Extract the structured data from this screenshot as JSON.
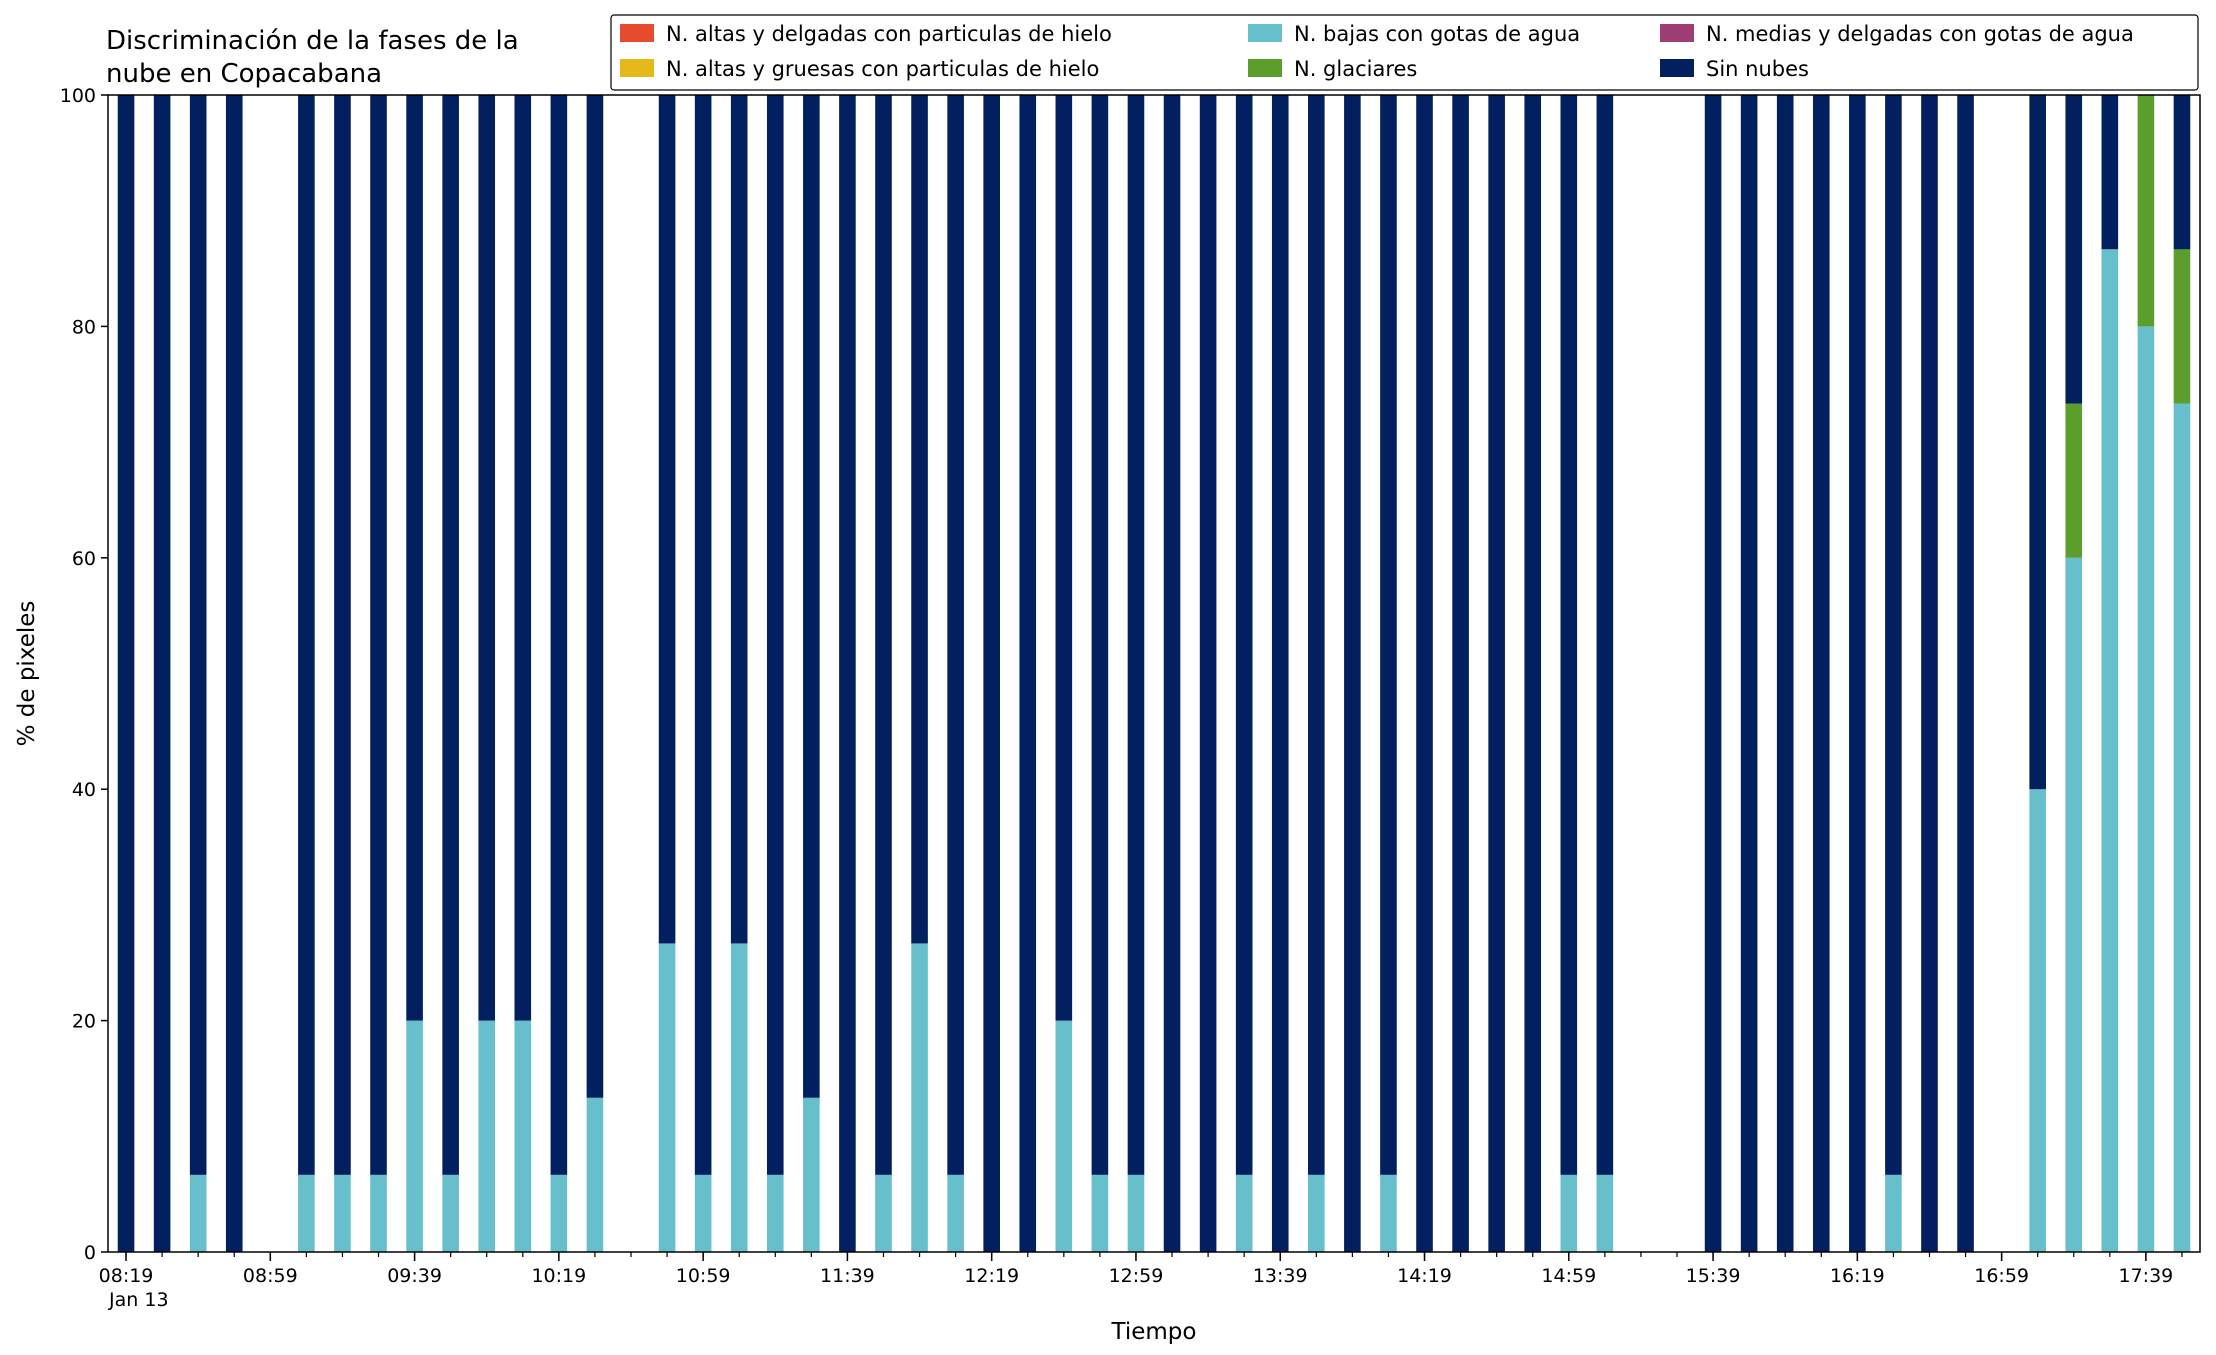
{
  "chart_data": {
    "type": "bar",
    "stacked": true,
    "title": "Discriminación de la fases de la\nnube en Copacabana",
    "xlabel": "Tiempo",
    "ylabel": "% de pixeles",
    "ylim": [
      0,
      100
    ],
    "yticks": [
      0,
      20,
      40,
      60,
      80,
      100
    ],
    "x_date_label": "Jan 13",
    "xlim": [
      "08:14",
      "17:54"
    ],
    "x_major_ticks": [
      "08:19",
      "08:59",
      "09:39",
      "10:19",
      "10:59",
      "11:39",
      "12:19",
      "12:59",
      "13:39",
      "14:19",
      "14:59",
      "15:39",
      "16:19",
      "16:59",
      "17:39"
    ],
    "x_minor_interval_minutes": 10,
    "bar_width_minutes": 4.6,
    "grid": false,
    "legend_position": "top-right",
    "categories": [
      "08:19",
      "08:29",
      "08:39",
      "08:49",
      "09:09",
      "09:19",
      "09:29",
      "09:39",
      "09:49",
      "09:59",
      "10:09",
      "10:19",
      "10:29",
      "10:49",
      "10:59",
      "11:09",
      "11:19",
      "11:29",
      "11:39",
      "11:49",
      "11:59",
      "12:09",
      "12:19",
      "12:29",
      "12:39",
      "12:49",
      "12:59",
      "13:09",
      "13:19",
      "13:29",
      "13:39",
      "13:49",
      "13:59",
      "14:09",
      "14:19",
      "14:29",
      "14:39",
      "14:49",
      "14:59",
      "15:09",
      "15:39",
      "15:49",
      "15:59",
      "16:09",
      "16:19",
      "16:29",
      "16:39",
      "16:49",
      "17:09",
      "17:19",
      "17:29",
      "17:39",
      "17:49"
    ],
    "series": [
      {
        "name": "N. altas y delgadas con particulas de hielo",
        "color": "#e64b2e",
        "values": [
          0,
          0,
          0,
          0,
          0,
          0,
          0,
          0,
          0,
          0,
          0,
          0,
          0,
          0,
          0,
          0,
          0,
          0,
          0,
          0,
          0,
          0,
          0,
          0,
          0,
          0,
          0,
          0,
          0,
          0,
          0,
          0,
          0,
          0,
          0,
          0,
          0,
          0,
          0,
          0,
          0,
          0,
          0,
          0,
          0,
          0,
          0,
          0,
          0,
          0,
          0,
          0,
          0
        ]
      },
      {
        "name": "N. altas y gruesas con particulas de hielo",
        "color": "#e6b91a",
        "values": [
          0,
          0,
          0,
          0,
          0,
          0,
          0,
          0,
          0,
          0,
          0,
          0,
          0,
          0,
          0,
          0,
          0,
          0,
          0,
          0,
          0,
          0,
          0,
          0,
          0,
          0,
          0,
          0,
          0,
          0,
          0,
          0,
          0,
          0,
          0,
          0,
          0,
          0,
          0,
          0,
          0,
          0,
          0,
          0,
          0,
          0,
          0,
          0,
          0,
          0,
          0,
          0,
          0
        ]
      },
      {
        "name": "N. bajas con gotas de agua",
        "color": "#66bfcb",
        "values": [
          0,
          0,
          6.67,
          0,
          6.67,
          6.67,
          6.67,
          20,
          6.67,
          20,
          20,
          6.67,
          13.33,
          26.67,
          6.67,
          26.67,
          6.67,
          13.33,
          0,
          6.67,
          26.67,
          6.67,
          0,
          0,
          20,
          6.67,
          6.67,
          0,
          0,
          6.67,
          0,
          6.67,
          0,
          6.67,
          0,
          0,
          0,
          0,
          6.67,
          6.67,
          0,
          0,
          0,
          0,
          0,
          6.67,
          0,
          0,
          40,
          60,
          86.67,
          80,
          73.33
        ]
      },
      {
        "name": "N. glaciares",
        "color": "#5b9e2b",
        "values": [
          0,
          0,
          0,
          0,
          0,
          0,
          0,
          0,
          0,
          0,
          0,
          0,
          0,
          0,
          0,
          0,
          0,
          0,
          0,
          0,
          0,
          0,
          0,
          0,
          0,
          0,
          0,
          0,
          0,
          0,
          0,
          0,
          0,
          0,
          0,
          0,
          0,
          0,
          0,
          0,
          0,
          0,
          0,
          0,
          0,
          0,
          0,
          0,
          0,
          13.33,
          0,
          20,
          13.33
        ]
      },
      {
        "name": "N. medias y delgadas con gotas de agua",
        "color": "#9e3e74",
        "values": [
          0,
          0,
          0,
          0,
          0,
          0,
          0,
          0,
          0,
          0,
          0,
          0,
          0,
          0,
          0,
          0,
          0,
          0,
          0,
          0,
          0,
          0,
          0,
          0,
          0,
          0,
          0,
          0,
          0,
          0,
          0,
          0,
          0,
          0,
          0,
          0,
          0,
          0,
          0,
          0,
          0,
          0,
          0,
          0,
          0,
          0,
          0,
          0,
          0,
          0,
          0,
          0,
          0
        ]
      },
      {
        "name": "Sin nubes",
        "color": "#021f5f",
        "values": [
          100,
          100,
          93.33,
          100,
          93.33,
          93.33,
          93.33,
          80,
          93.33,
          80,
          80,
          93.33,
          86.67,
          73.33,
          93.33,
          73.33,
          93.33,
          86.67,
          100,
          93.33,
          73.33,
          93.33,
          100,
          100,
          80,
          93.33,
          93.33,
          100,
          100,
          93.33,
          100,
          93.33,
          100,
          93.33,
          100,
          100,
          100,
          100,
          93.33,
          93.33,
          100,
          100,
          100,
          100,
          100,
          93.33,
          100,
          100,
          60,
          26.67,
          13.33,
          0,
          13.33
        ]
      }
    ],
    "legend_order": [
      0,
      1,
      2,
      3,
      4,
      5
    ]
  }
}
